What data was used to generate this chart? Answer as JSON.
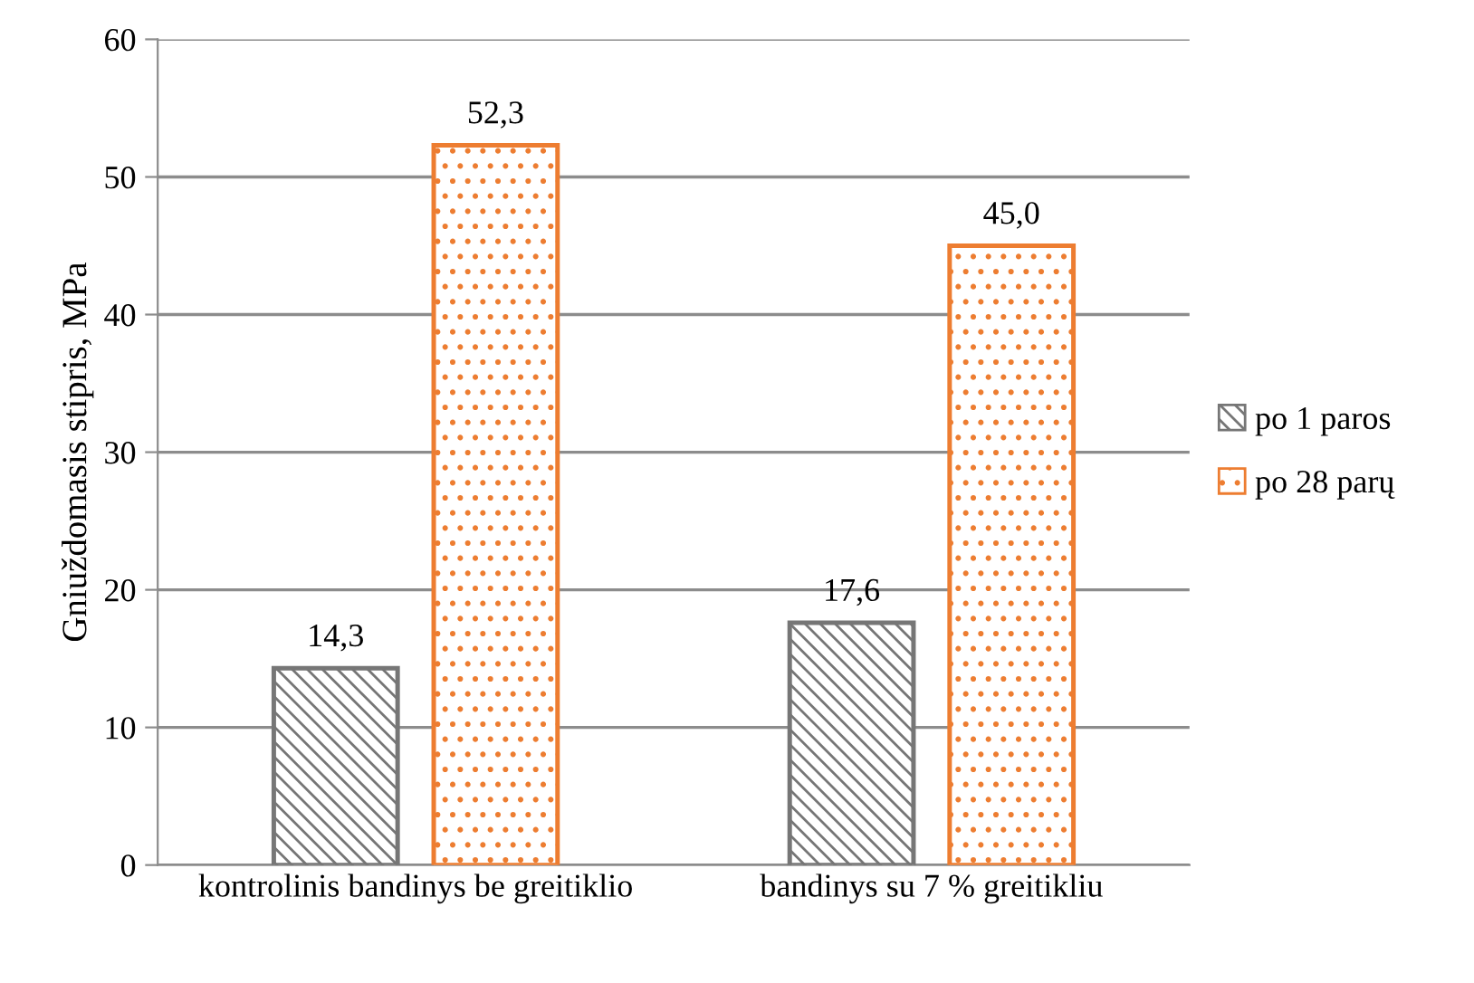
{
  "chart_data": {
    "type": "bar",
    "ylabel": "Gniuždomasis stipris, MPa",
    "categories": [
      "kontrolinis bandinys be greitiklio",
      "bandinys su 7 % greitikliu"
    ],
    "series": [
      {
        "name": "po 1 paros",
        "color": "#767676",
        "values": [
          14.3,
          17.6
        ],
        "value_labels": [
          "14,3",
          "17,6"
        ]
      },
      {
        "name": "po 28 parų",
        "color": "#ed7d31",
        "values": [
          52.3,
          45.0
        ],
        "value_labels": [
          "52,3",
          "45,0"
        ]
      }
    ],
    "ylim": [
      0,
      60
    ],
    "yticks": [
      0,
      10,
      20,
      30,
      40,
      50,
      60
    ],
    "grid": "y",
    "legend": "right"
  }
}
